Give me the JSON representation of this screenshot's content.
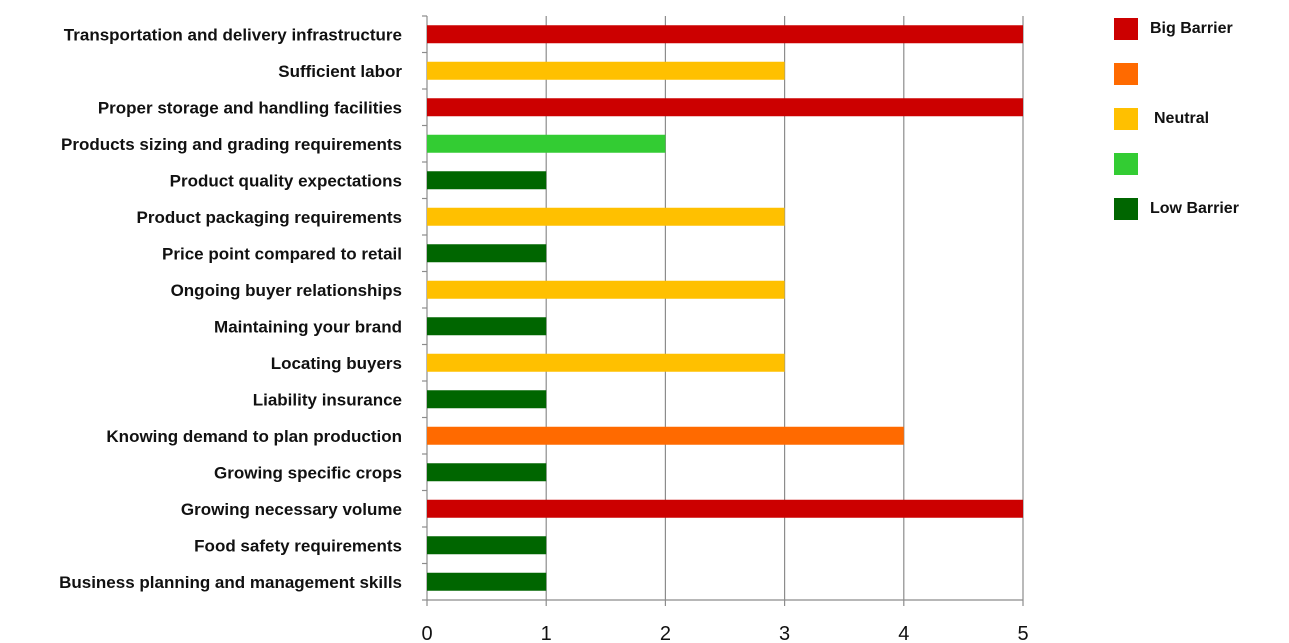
{
  "chart_data": {
    "type": "bar",
    "orientation": "horizontal",
    "categories": [
      "Transportation and delivery infrastructure",
      "Sufficient labor",
      "Proper storage and handling facilities",
      "Products sizing and grading requirements",
      "Product quality expectations",
      "Product packaging requirements",
      "Price point compared to retail",
      "Ongoing buyer relationships",
      "Maintaining your brand",
      "Locating buyers",
      "Liability insurance",
      "Knowing demand to plan production",
      "Growing specific crops",
      "Growing necessary volume",
      "Food safety requirements",
      "Business planning and management skills"
    ],
    "values": [
      5,
      3,
      5,
      2,
      1,
      3,
      1,
      3,
      1,
      3,
      1,
      4,
      1,
      5,
      1,
      1
    ],
    "colors_by_value": {
      "1": "#006600",
      "2": "#33cc33",
      "3": "#ffc000",
      "4": "#ff6a00",
      "5": "#cc0000"
    },
    "legend": [
      {
        "label": "Big Barrier",
        "color": "#cc0000"
      },
      {
        "label": "",
        "color": "#ff6a00"
      },
      {
        "label": "Neutral",
        "color": "#ffc000"
      },
      {
        "label": "",
        "color": "#33cc33"
      },
      {
        "label": "Low Barrier",
        "color": "#006600"
      }
    ],
    "legend_position": "top-right",
    "xlim": [
      0,
      5
    ],
    "xticks": [
      0,
      1,
      2,
      3,
      4,
      5
    ],
    "grid": true,
    "title": "",
    "xlabel": "",
    "ylabel": ""
  }
}
